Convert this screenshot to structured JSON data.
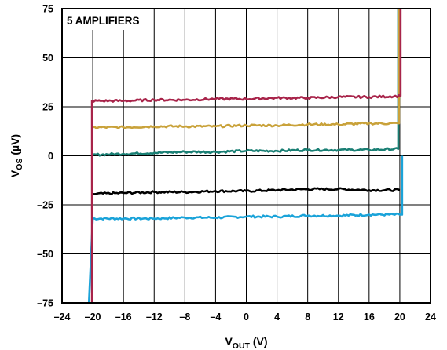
{
  "chart_data": {
    "type": "line",
    "annotation": "5 AMPLIFIERS",
    "xlabel": {
      "main": "V",
      "sub": "OUT",
      "unit": " (V)"
    },
    "ylabel": {
      "main": "V",
      "sub": "OS",
      "unit": " (µV)"
    },
    "xlim": [
      -24,
      24
    ],
    "ylim": [
      -75,
      75
    ],
    "x_ticks": [
      -24,
      -20,
      -16,
      -12,
      -8,
      -4,
      0,
      4,
      8,
      12,
      16,
      20,
      24
    ],
    "x_tick_labels": [
      "–24",
      "–20",
      "–16",
      "–12",
      "–8",
      "–4",
      "0",
      "4",
      "8",
      "12",
      "16",
      "20",
      "24"
    ],
    "y_ticks": [
      75,
      50,
      25,
      0,
      -25,
      -50,
      -75
    ],
    "y_tick_labels": [
      "75",
      "50",
      "25",
      "0",
      "–25",
      "–50",
      "–75"
    ],
    "grid": true,
    "series": [
      {
        "color": "#1aa3d9",
        "x": [
          -20.5,
          -20.0,
          -16,
          -12,
          -8,
          -4,
          0,
          4,
          8,
          12,
          16,
          20.0,
          20.3,
          20.3
        ],
        "y": [
          -75,
          -32,
          -32,
          -32,
          -31.5,
          -31.5,
          -31,
          -31,
          -30.5,
          -30.5,
          -30,
          -30,
          -30,
          0
        ]
      },
      {
        "color": "#000000",
        "x": [
          -20.0,
          -16,
          -12,
          -8,
          -4,
          0,
          4,
          8,
          12,
          16,
          20.0
        ],
        "y": [
          -19.5,
          -19,
          -18.5,
          -18.5,
          -18,
          -18,
          -17.5,
          -17,
          -17,
          -17.5,
          -17.5
        ]
      },
      {
        "color": "#1a7f74",
        "x": [
          -20.0,
          -16,
          -12,
          -8,
          -4,
          0,
          4,
          8,
          12,
          16,
          19.8,
          19.8
        ],
        "y": [
          0.5,
          1,
          1.5,
          2,
          2,
          2.5,
          2.5,
          3,
          3,
          3,
          3.5,
          75
        ]
      },
      {
        "color": "#c9a23a",
        "x": [
          -20.0,
          -16,
          -12,
          -8,
          -4,
          0,
          4,
          8,
          12,
          16,
          19.9,
          19.9
        ],
        "y": [
          14.5,
          14.5,
          15,
          15,
          15,
          15.5,
          15.5,
          16,
          16,
          16.5,
          16.5,
          75
        ]
      },
      {
        "color": "#a8244a",
        "x": [
          -20.1,
          -20.1,
          -16,
          -12,
          -8,
          -4,
          0,
          4,
          8,
          12,
          16,
          20.1,
          20.1
        ],
        "y": [
          -75,
          28,
          28,
          28.5,
          28.5,
          29,
          29,
          29.5,
          29.5,
          30,
          30,
          30.5,
          75
        ]
      }
    ]
  }
}
